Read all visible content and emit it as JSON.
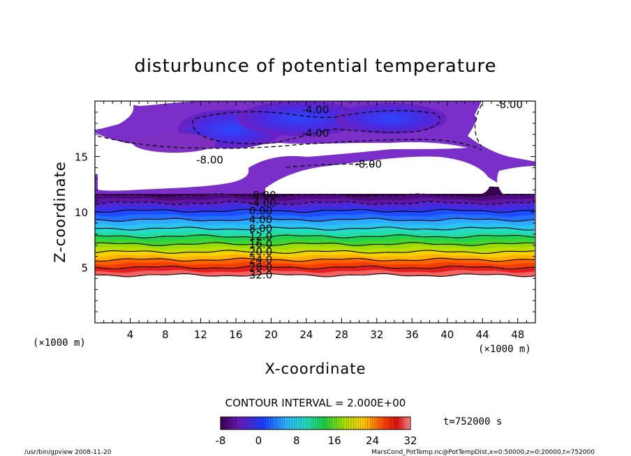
{
  "chart_data": {
    "type": "heatmap",
    "title": "disturbunce of potential temperature",
    "xlabel": "X-coordinate",
    "ylabel": "Z-coordinate",
    "x_unit_left": "(×1000 m)",
    "x_unit_right": "(×1000 m)",
    "xlim": [
      0,
      50
    ],
    "ylim": [
      0,
      20
    ],
    "xticks": [
      4,
      8,
      12,
      16,
      20,
      24,
      28,
      32,
      36,
      40,
      44,
      48
    ],
    "yticks": [
      5,
      10,
      15
    ],
    "contour_interval_text": "CONTOUR INTERVAL = 2.000E+00",
    "time_text": "t=752000  s",
    "colorbar": {
      "min": -8,
      "max": 32,
      "ticks": [
        -8,
        0,
        8,
        16,
        24,
        32
      ]
    },
    "contour_levels": [
      {
        "label": "32.0",
        "z": 4.3
      },
      {
        "label": "28.0",
        "z": 5.0
      },
      {
        "label": "24.0",
        "z": 5.7
      },
      {
        "label": "20.0",
        "z": 6.4
      },
      {
        "label": "16.0",
        "z": 7.1
      },
      {
        "label": "12.0",
        "z": 7.8
      },
      {
        "label": "8.00",
        "z": 8.5
      },
      {
        "label": "4.00",
        "z": 9.3
      },
      {
        "label": "0.00",
        "z": 10.1
      },
      {
        "label": "-4.00",
        "z": 10.8
      },
      {
        "label": "-8.00",
        "z": 11.5
      }
    ],
    "upper_labels": [
      {
        "label": "-4.00",
        "x": 23.5,
        "z": 19.2
      },
      {
        "label": "-4.00",
        "x": 23.5,
        "z": 17.1
      },
      {
        "label": "-8.00",
        "x": 45.5,
        "z": 19.7
      },
      {
        "label": "-8.00",
        "x": 11.5,
        "z": 14.7
      },
      {
        "label": "-8.00",
        "x": 29.5,
        "z": 14.3
      }
    ],
    "footer_left": "/usr/bin/gpview   2008-11-20",
    "footer_right": "MarsCond_PotTemp.nc@PotTempDist,x=0:50000,z=0:20000,t=752000"
  }
}
